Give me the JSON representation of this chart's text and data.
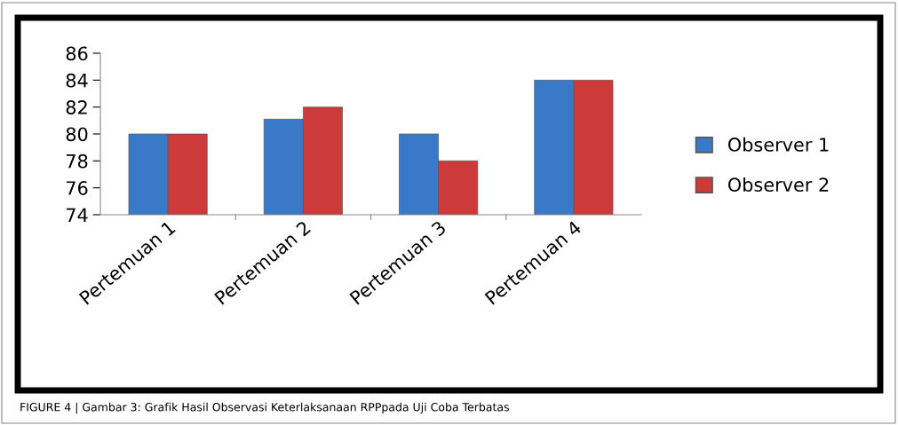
{
  "chart_data": {
    "type": "bar",
    "categories": [
      "Pertemuan 1",
      "Pertemuan 2",
      "Pertemuan 3",
      "Pertemuan 4"
    ],
    "series": [
      {
        "name": "Observer 1",
        "color": "#3a78c8",
        "values": [
          80,
          81.1,
          80,
          84
        ]
      },
      {
        "name": "Observer 2",
        "color": "#cc3a3a",
        "values": [
          80,
          82,
          78,
          84
        ]
      }
    ],
    "ylim": [
      74,
      86
    ],
    "yticks": [
      74,
      76,
      78,
      80,
      82,
      84,
      86
    ],
    "grid": false,
    "legend": "right",
    "annotations": [
      "FIGURE 4 | Gambar 3: Grafik Hasil Observasi Keterlaksanaan RPPpada Uji Coba Terbatas"
    ]
  }
}
